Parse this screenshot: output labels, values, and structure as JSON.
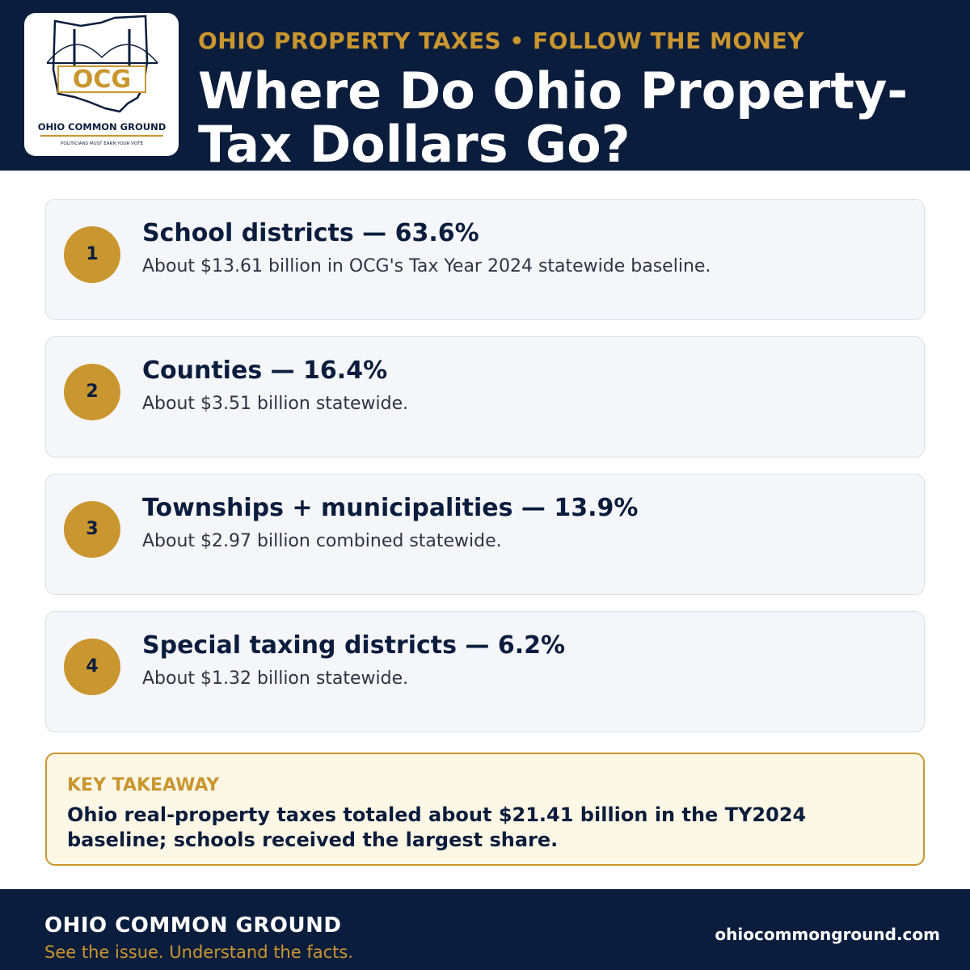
{
  "header": {
    "logo": {
      "mark": "OCG",
      "name": "OHIO COMMON GROUND",
      "motto": "POLITICIANS MUST EARN YOUR VOTE"
    },
    "kicker": "OHIO PROPERTY TAXES • FOLLOW THE MONEY",
    "title": "Where Do Ohio Property-Tax Dollars Go?"
  },
  "items": [
    {
      "number": "1",
      "heading": "School districts — 63.6%",
      "text": "About $13.61 billion in OCG's Tax Year 2024 statewide baseline."
    },
    {
      "number": "2",
      "heading": "Counties — 16.4%",
      "text": "About $3.51 billion statewide."
    },
    {
      "number": "3",
      "heading": "Townships + municipalities — 13.9%",
      "text": "About $2.97 billion combined statewide."
    },
    {
      "number": "4",
      "heading": "Special taxing districts — 6.2%",
      "text": "About $1.32 billion statewide."
    }
  ],
  "takeaway": {
    "label": "KEY TAKEAWAY",
    "text": "Ohio real-property taxes totaled about $21.41 billion in the TY2024 baseline; schools received the largest share."
  },
  "footer": {
    "name": "OHIO COMMON GROUND",
    "tagline": "See the issue. Understand the facts.",
    "url": "ohiocommonground.com"
  }
}
